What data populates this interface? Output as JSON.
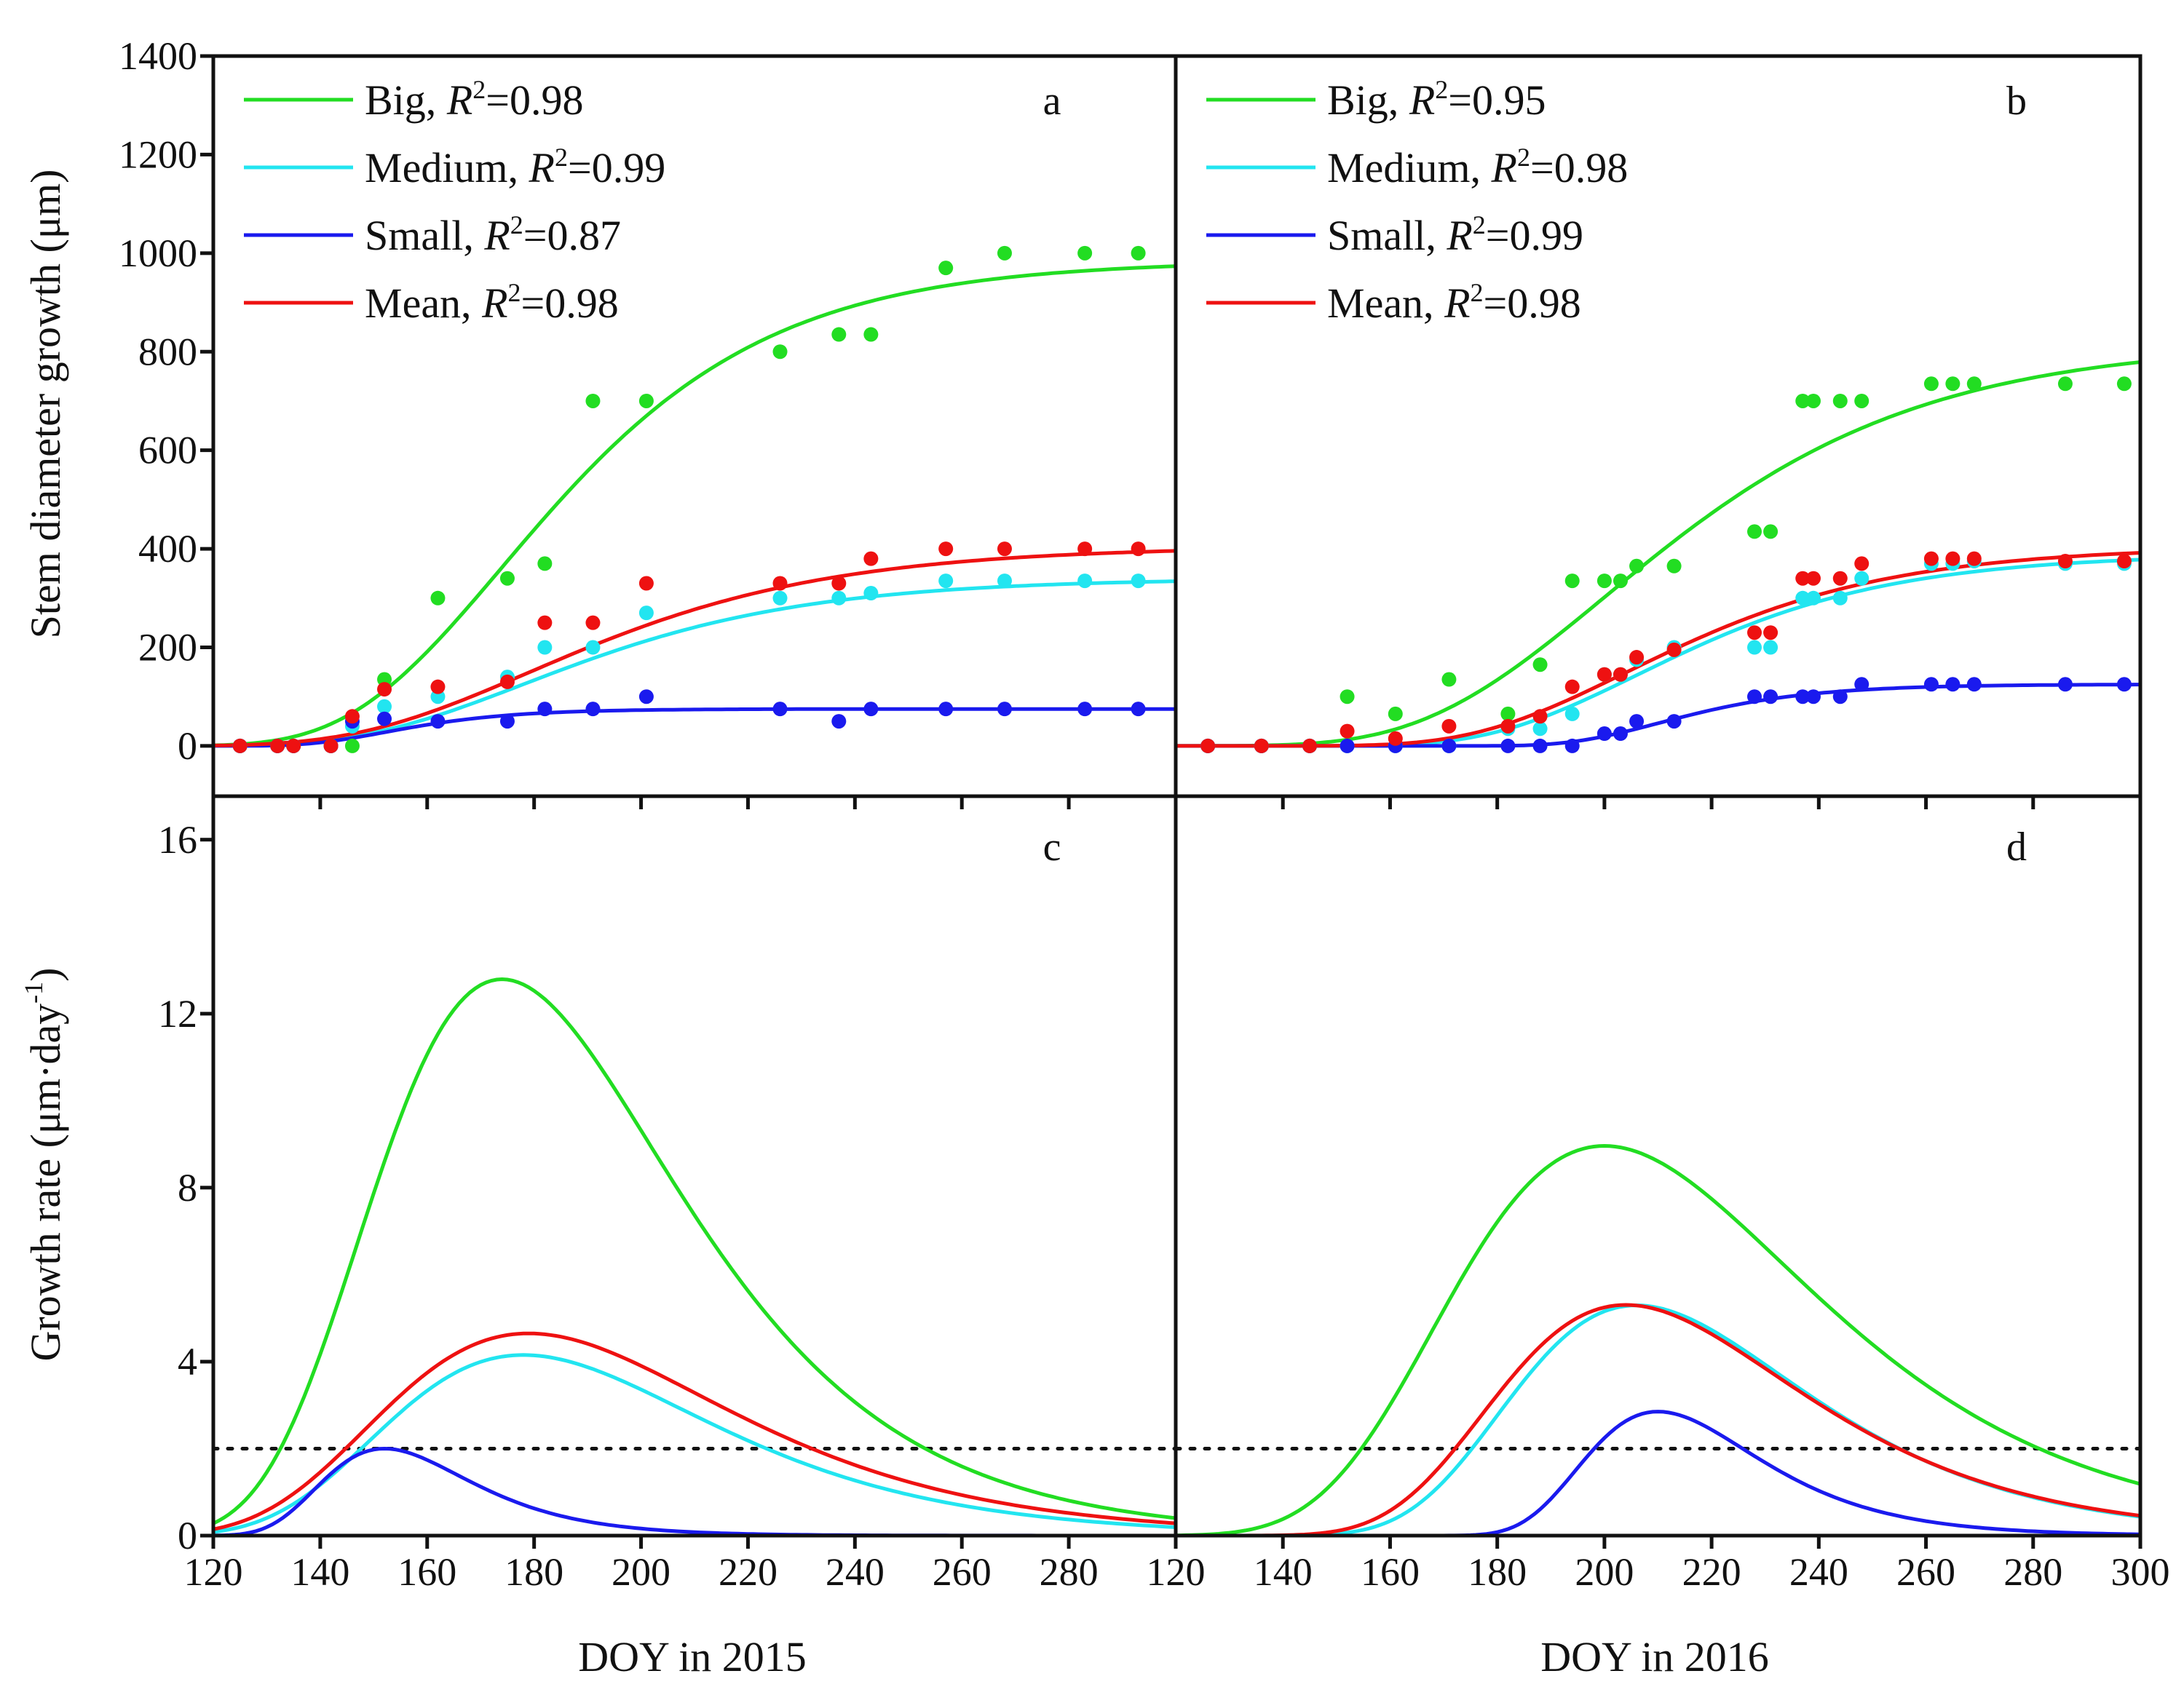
{
  "chart_data": [
    {
      "id": "a",
      "type": "scatter+line",
      "panel_label": "a",
      "ylabel": "Stem diameter growth (μm)",
      "xlabel": "DOY in 2015",
      "xlim": [
        120,
        300
      ],
      "ylim": [
        -102,
        1400
      ],
      "yticks": [
        0,
        200,
        400,
        600,
        800,
        1000,
        1200,
        1400
      ],
      "legend": "top-left",
      "series": [
        {
          "name": "Big",
          "r2": "0.98",
          "color": "#22dd22",
          "fit": {
            "model": "gompertz",
            "A": 985,
            "k": 0.0353,
            "t0": 174
          },
          "points": [
            [
              125,
              0
            ],
            [
              132,
              0
            ],
            [
              135,
              0
            ],
            [
              142,
              0
            ],
            [
              146,
              0
            ],
            [
              152,
              135
            ],
            [
              162,
              300
            ],
            [
              175,
              340
            ],
            [
              182,
              370
            ],
            [
              191,
              700
            ],
            [
              201,
              700
            ],
            [
              226,
              800
            ],
            [
              237,
              835
            ],
            [
              243,
              835
            ],
            [
              257,
              970
            ],
            [
              268,
              1000
            ],
            [
              283,
              1000
            ],
            [
              293,
              1000
            ]
          ]
        },
        {
          "name": "Medium",
          "r2": "0.99",
          "color": "#22e5f0",
          "fit": {
            "model": "gompertz",
            "A": 340,
            "k": 0.0332,
            "t0": 178
          },
          "points": [
            [
              125,
              0
            ],
            [
              132,
              0
            ],
            [
              135,
              0
            ],
            [
              142,
              0
            ],
            [
              146,
              40
            ],
            [
              152,
              80
            ],
            [
              162,
              100
            ],
            [
              175,
              140
            ],
            [
              182,
              200
            ],
            [
              191,
              200
            ],
            [
              201,
              270
            ],
            [
              226,
              300
            ],
            [
              237,
              300
            ],
            [
              243,
              310
            ],
            [
              257,
              335
            ],
            [
              268,
              335
            ],
            [
              283,
              335
            ],
            [
              293,
              335
            ]
          ]
        },
        {
          "name": "Small",
          "r2": "0.87",
          "color": "#1a1aee",
          "fit": {
            "model": "gompertz",
            "A": 75,
            "k": 0.0725,
            "t0": 152
          },
          "points": [
            [
              125,
              0
            ],
            [
              132,
              0
            ],
            [
              135,
              0
            ],
            [
              142,
              0
            ],
            [
              146,
              50
            ],
            [
              152,
              55
            ],
            [
              162,
              50
            ],
            [
              175,
              50
            ],
            [
              182,
              75
            ],
            [
              191,
              75
            ],
            [
              201,
              100
            ],
            [
              226,
              75
            ],
            [
              237,
              50
            ],
            [
              243,
              75
            ],
            [
              257,
              75
            ],
            [
              268,
              75
            ],
            [
              283,
              75
            ],
            [
              293,
              75
            ]
          ]
        },
        {
          "name": "Mean",
          "r2": "0.98",
          "color": "#ee1111",
          "fit": {
            "model": "gompertz",
            "A": 405,
            "k": 0.0312,
            "t0": 179
          },
          "points": [
            [
              125,
              0
            ],
            [
              132,
              0
            ],
            [
              135,
              0
            ],
            [
              142,
              0
            ],
            [
              146,
              60
            ],
            [
              152,
              115
            ],
            [
              162,
              120
            ],
            [
              175,
              130
            ],
            [
              182,
              250
            ],
            [
              191,
              250
            ],
            [
              201,
              330
            ],
            [
              226,
              330
            ],
            [
              237,
              330
            ],
            [
              243,
              380
            ],
            [
              257,
              400
            ],
            [
              268,
              400
            ],
            [
              283,
              400
            ],
            [
              293,
              400
            ]
          ]
        }
      ]
    },
    {
      "id": "b",
      "type": "scatter+line",
      "panel_label": "b",
      "xlabel": "DOY in 2016",
      "xlim": [
        120,
        300
      ],
      "ylim": [
        -102,
        1400
      ],
      "legend": "top-left",
      "series": [
        {
          "name": "Big",
          "r2": "0.95",
          "color": "#22dd22",
          "fit": {
            "model": "gompertz",
            "A": 820,
            "k": 0.0297,
            "t0": 200
          },
          "points": [
            [
              126,
              0
            ],
            [
              136,
              0
            ],
            [
              145,
              0
            ],
            [
              152,
              100
            ],
            [
              161,
              65
            ],
            [
              171,
              135
            ],
            [
              182,
              65
            ],
            [
              188,
              165
            ],
            [
              194,
              335
            ],
            [
              200,
              335
            ],
            [
              203,
              335
            ],
            [
              206,
              365
            ],
            [
              213,
              365
            ],
            [
              228,
              435
            ],
            [
              231,
              435
            ],
            [
              237,
              700
            ],
            [
              239,
              700
            ],
            [
              244,
              700
            ],
            [
              248,
              700
            ],
            [
              261,
              735
            ],
            [
              265,
              735
            ],
            [
              269,
              735
            ],
            [
              286,
              735
            ],
            [
              297,
              735
            ]
          ]
        },
        {
          "name": "Medium",
          "r2": "0.98",
          "color": "#22e5f0",
          "fit": {
            "model": "gompertz",
            "A": 390,
            "k": 0.0369,
            "t0": 206
          },
          "points": [
            [
              126,
              0
            ],
            [
              136,
              0
            ],
            [
              145,
              0
            ],
            [
              152,
              0
            ],
            [
              161,
              0
            ],
            [
              171,
              0
            ],
            [
              182,
              35
            ],
            [
              188,
              35
            ],
            [
              194,
              65
            ],
            [
              200,
              145
            ],
            [
              203,
              145
            ],
            [
              206,
              175
            ],
            [
              213,
              200
            ],
            [
              228,
              200
            ],
            [
              231,
              200
            ],
            [
              237,
              300
            ],
            [
              239,
              300
            ],
            [
              244,
              300
            ],
            [
              248,
              340
            ],
            [
              261,
              370
            ],
            [
              265,
              370
            ],
            [
              269,
              375
            ],
            [
              286,
              370
            ],
            [
              297,
              370
            ]
          ]
        },
        {
          "name": "Small",
          "r2": "0.99",
          "color": "#1a1aee",
          "fit": {
            "model": "gompertz",
            "A": 125,
            "k": 0.062,
            "t0": 210
          },
          "points": [
            [
              126,
              0
            ],
            [
              136,
              0
            ],
            [
              145,
              0
            ],
            [
              152,
              0
            ],
            [
              161,
              0
            ],
            [
              171,
              0
            ],
            [
              182,
              0
            ],
            [
              188,
              0
            ],
            [
              194,
              0
            ],
            [
              200,
              25
            ],
            [
              203,
              25
            ],
            [
              206,
              50
            ],
            [
              213,
              50
            ],
            [
              228,
              100
            ],
            [
              231,
              100
            ],
            [
              237,
              100
            ],
            [
              239,
              100
            ],
            [
              244,
              100
            ],
            [
              248,
              125
            ],
            [
              261,
              125
            ],
            [
              265,
              125
            ],
            [
              269,
              125
            ],
            [
              286,
              125
            ],
            [
              297,
              125
            ]
          ]
        },
        {
          "name": "Mean",
          "r2": "0.98",
          "color": "#ee1111",
          "fit": {
            "model": "gompertz",
            "A": 405,
            "k": 0.0356,
            "t0": 204
          },
          "points": [
            [
              126,
              0
            ],
            [
              136,
              0
            ],
            [
              145,
              0
            ],
            [
              152,
              30
            ],
            [
              161,
              15
            ],
            [
              171,
              40
            ],
            [
              182,
              40
            ],
            [
              188,
              60
            ],
            [
              194,
              120
            ],
            [
              200,
              145
            ],
            [
              203,
              145
            ],
            [
              206,
              180
            ],
            [
              213,
              195
            ],
            [
              228,
              230
            ],
            [
              231,
              230
            ],
            [
              237,
              340
            ],
            [
              239,
              340
            ],
            [
              244,
              340
            ],
            [
              248,
              370
            ],
            [
              261,
              380
            ],
            [
              265,
              380
            ],
            [
              269,
              380
            ],
            [
              286,
              375
            ],
            [
              297,
              375
            ]
          ]
        }
      ]
    },
    {
      "id": "c",
      "type": "line",
      "panel_label": "c",
      "ylabel": "Growth rate (μm·day",
      "ylabel_sup": "-1",
      "ylabel_end": ")",
      "xlabel": "DOY in 2015",
      "xlim": [
        120,
        300
      ],
      "ylim": [
        0,
        17
      ],
      "yticks": [
        0,
        4,
        8,
        12,
        16
      ],
      "xticks": [
        120,
        140,
        160,
        180,
        200,
        220,
        240,
        260,
        280
      ],
      "reference_line": 2,
      "note": "rate curves are derivatives of panel a fits"
    },
    {
      "id": "d",
      "type": "line",
      "panel_label": "d",
      "xlabel": "DOY in 2016",
      "xlim": [
        120,
        300
      ],
      "ylim": [
        0,
        17
      ],
      "xticks": [
        120,
        140,
        160,
        180,
        200,
        220,
        240,
        260,
        280,
        300
      ],
      "reference_line": 2,
      "note": "rate curves are derivatives of panel b fits"
    }
  ]
}
